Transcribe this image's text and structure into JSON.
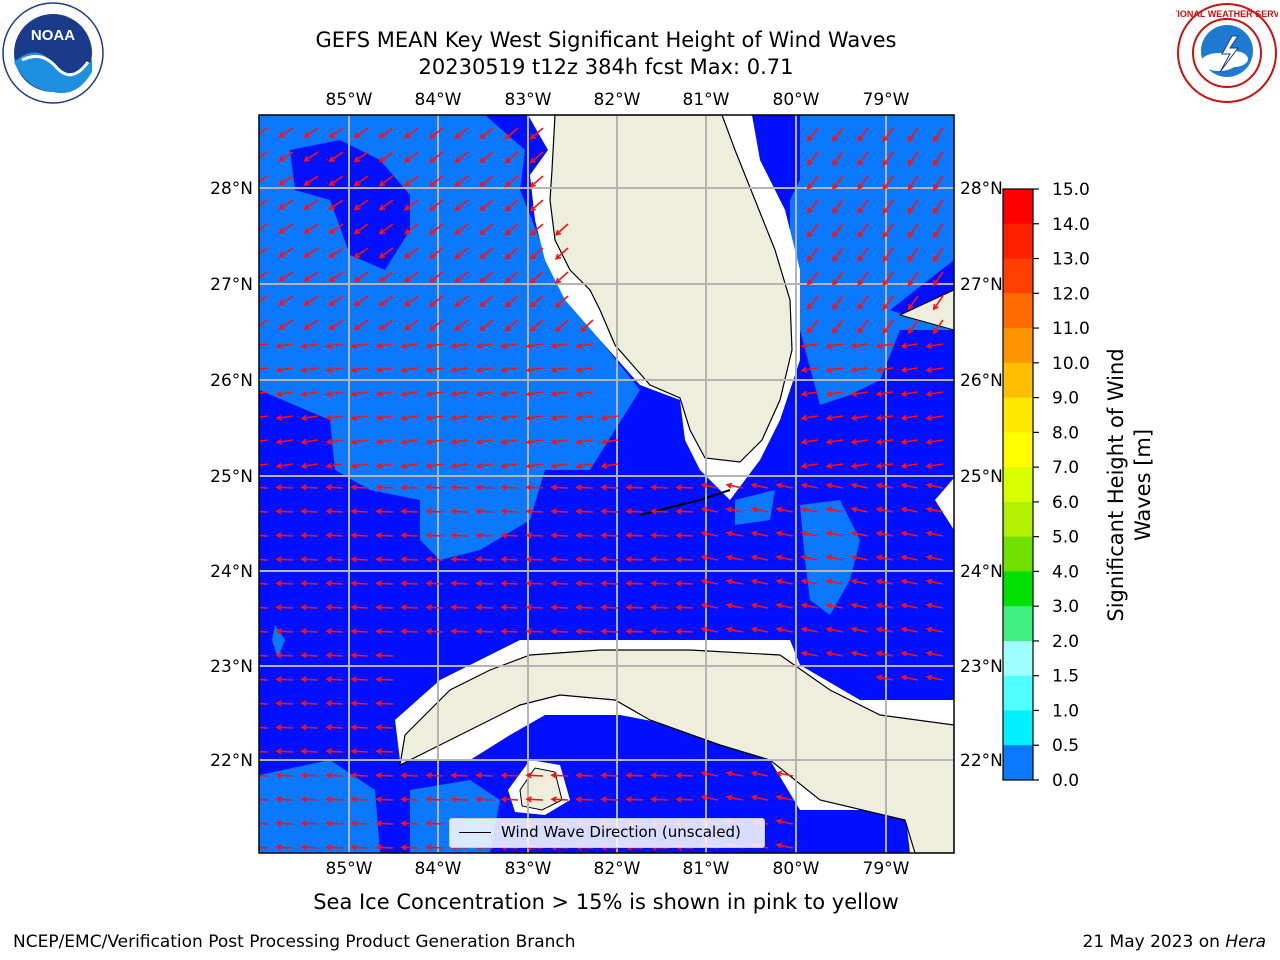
{
  "header": {
    "title_line1": "GEFS MEAN Key West Significant Height of Wind Waves",
    "title_line2": "20230519 t12z 384h fcst   Max: 0.71"
  },
  "logos": {
    "left": {
      "text": "NOAA",
      "ring_text": "NATIONAL OCEANIC AND ATMOSPHERIC ADMINISTRATION • U.S. DEPARTMENT OF COMMERCE"
    },
    "right": {
      "text": "NATIONAL WEATHER SERVICE"
    }
  },
  "map": {
    "lon_ticks": [
      "85°W",
      "84°W",
      "83°W",
      "82°W",
      "81°W",
      "80°W",
      "79°W"
    ],
    "lat_ticks": [
      "28°N",
      "27°N",
      "26°N",
      "25°N",
      "24°N",
      "23°N",
      "22°N"
    ],
    "legend": "Wind Wave Direction (unscaled)",
    "colors": {
      "ocean_low": "#0010ff",
      "ocean_mid": "#0a78ff",
      "land": "#eeeedd",
      "arrows": "#ff1010",
      "grid": "#b4b4b4"
    }
  },
  "colorbar": {
    "ticks": [
      "15.0",
      "14.0",
      "13.0",
      "12.0",
      "11.0",
      "10.0",
      "9.0",
      "8.0",
      "7.0",
      "6.0",
      "5.0",
      "4.0",
      "3.0",
      "2.0",
      "1.5",
      "1.0",
      "0.5",
      "0.0"
    ],
    "colors": [
      "#ff0000",
      "#ff2000",
      "#ff4000",
      "#ff6a00",
      "#ff9400",
      "#ffbe00",
      "#ffe800",
      "#ffff00",
      "#d8ff00",
      "#b0f000",
      "#70e000",
      "#00e000",
      "#40f080",
      "#a0ffff",
      "#50ffff",
      "#00f0ff",
      "#0a78ff",
      "#0010ff"
    ],
    "label_line1": "Significant Height of Wind",
    "label_line2": "Waves [m]"
  },
  "note": "Sea Ice Concentration > 15% is shown in pink to yellow",
  "footer": {
    "left": "NCEP/EMC/Verification Post Processing Product Generation Branch",
    "right_prefix": "21 May 2023 on ",
    "right_host": "Hera"
  }
}
